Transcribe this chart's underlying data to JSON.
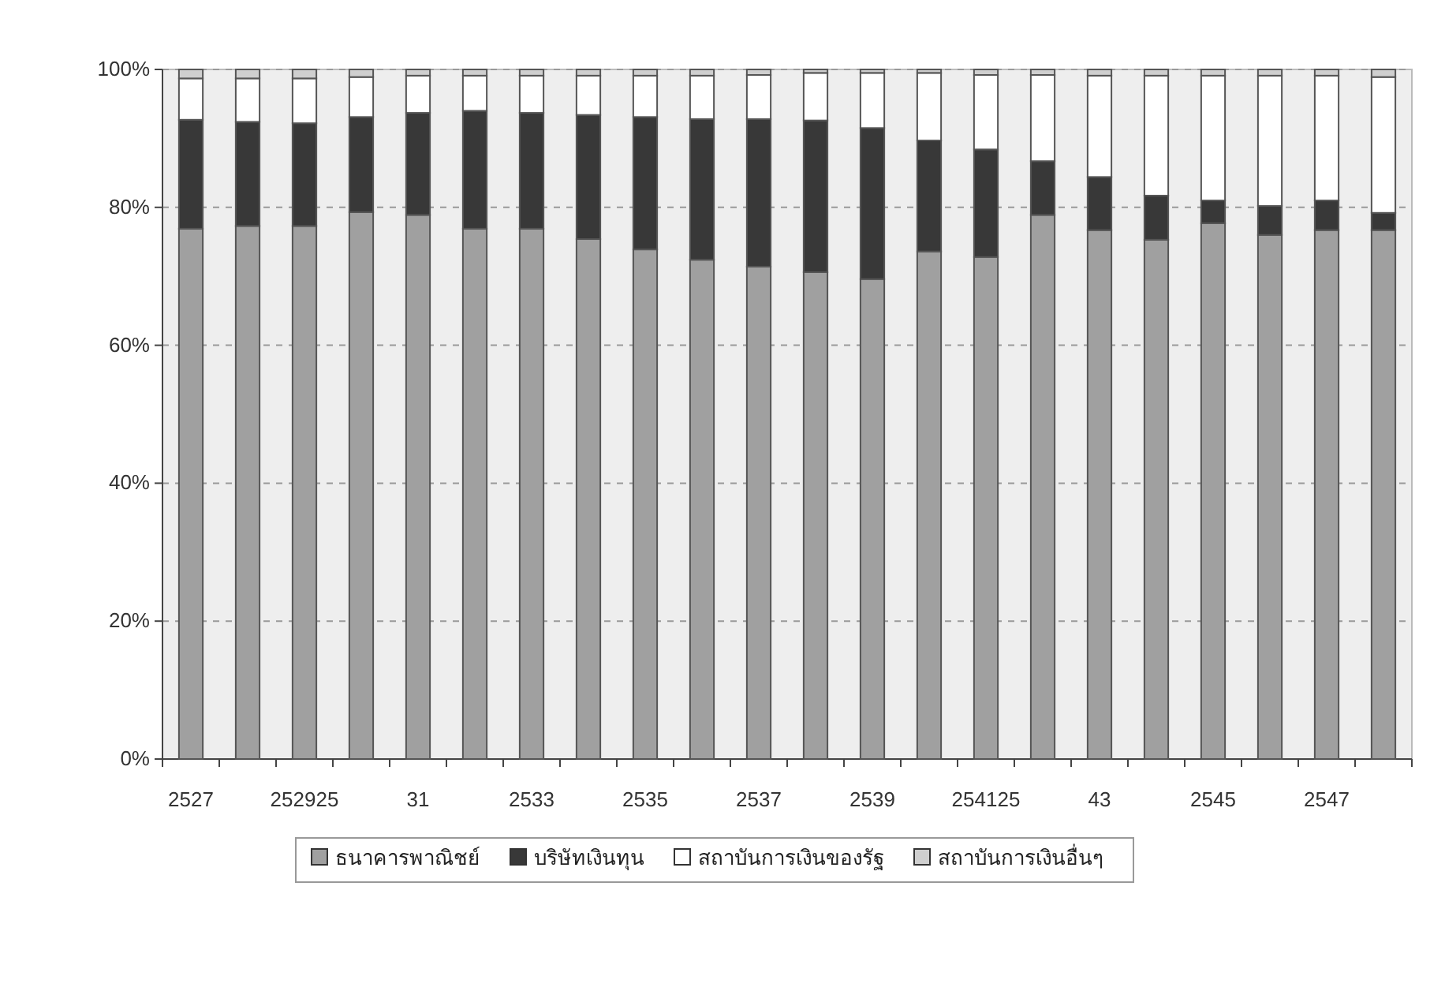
{
  "chart_data": {
    "type": "bar",
    "stacked": true,
    "grid": "y",
    "legend": "bottom",
    "categories": [
      "2527",
      null,
      "252925",
      null,
      "31",
      null,
      "2533",
      null,
      "2535",
      null,
      "2537",
      null,
      "2539",
      null,
      "254125",
      null,
      "43",
      null,
      "2545",
      null,
      "2547",
      null
    ],
    "ylim": [
      0,
      100
    ],
    "yticks": [
      {
        "value": 0,
        "label": "0%"
      },
      {
        "value": 20,
        "label": "20%"
      },
      {
        "value": 40,
        "label": "40%"
      },
      {
        "value": 60,
        "label": "60%"
      },
      {
        "value": 80,
        "label": "80%"
      },
      {
        "value": 100,
        "label": "100%"
      }
    ],
    "series": [
      {
        "name": "ธนาคารพาณิชย์",
        "color": "#a0a0a0",
        "values": [
          76.9,
          77.3,
          77.3,
          79.3,
          78.9,
          76.9,
          76.9,
          75.4,
          73.9,
          72.4,
          71.4,
          70.6,
          69.6,
          73.6,
          72.8,
          78.9,
          76.7,
          75.3,
          77.7,
          76.0,
          76.7,
          76.7
        ]
      },
      {
        "name": "บริษัทเงินทุน",
        "color": "#383838",
        "values": [
          15.8,
          15.1,
          14.9,
          13.8,
          14.8,
          17.1,
          16.8,
          18.0,
          19.2,
          20.4,
          21.4,
          22.0,
          21.9,
          16.1,
          15.6,
          7.8,
          7.7,
          6.4,
          3.3,
          4.2,
          4.3,
          2.5
        ]
      },
      {
        "name": "สถาบันการเงินของรัฐ",
        "color": "#ffffff",
        "values": [
          6.0,
          6.3,
          6.5,
          5.8,
          5.4,
          5.1,
          5.4,
          5.7,
          6.0,
          6.3,
          6.4,
          6.9,
          8.0,
          9.8,
          10.8,
          12.5,
          14.7,
          17.4,
          18.1,
          18.9,
          18.1,
          19.7
        ]
      },
      {
        "name": "สถาบันการเงินอื่นๆ",
        "color": "#cfcfcf",
        "values": [
          1.3,
          1.3,
          1.3,
          1.1,
          0.9,
          0.9,
          0.9,
          0.9,
          0.9,
          0.9,
          0.8,
          0.5,
          0.5,
          0.5,
          0.8,
          0.8,
          0.9,
          0.9,
          0.9,
          0.9,
          0.9,
          1.1
        ]
      }
    ]
  }
}
